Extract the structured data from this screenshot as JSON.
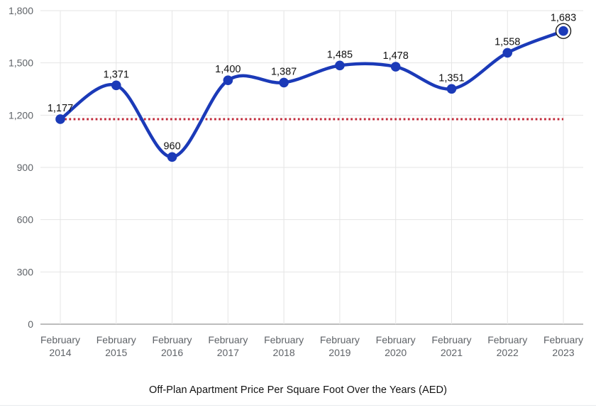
{
  "chart_data": {
    "type": "line",
    "title": "Off-Plan Apartment Price Per Square Foot Over the Years (AED)",
    "categories": [
      "February 2014",
      "February 2015",
      "February 2016",
      "February 2017",
      "February 2018",
      "February 2019",
      "February 2020",
      "February 2021",
      "February 2022",
      "February 2023"
    ],
    "values": [
      1177,
      1371,
      960,
      1400,
      1387,
      1485,
      1478,
      1351,
      1558,
      1683
    ],
    "value_labels": [
      "1,177",
      "1,371",
      "960",
      "1,400",
      "1,387",
      "1,485",
      "1,478",
      "1,351",
      "1,558",
      "1,683"
    ],
    "y_ticks": [
      0,
      300,
      600,
      900,
      1200,
      1500,
      1800
    ],
    "y_tick_labels": [
      "0",
      "300",
      "600",
      "900",
      "1,200",
      "1,500",
      "1,800"
    ],
    "ylim": [
      0,
      1800
    ],
    "grid": true,
    "legend": "none",
    "line_style": "smooth",
    "reference_line": {
      "value": 1177,
      "style": "dotted"
    },
    "highlighted_point_index": 9
  },
  "colors": {
    "line": "#1b3ab8",
    "marker": "#1b3ab8",
    "reference_line": "#c12a3a",
    "grid": "#e5e5e5",
    "axis": "#7a7a7a",
    "tick_text": "#5f6368",
    "value_text": "#111111",
    "title_text": "#121212",
    "background": "#ffffff",
    "highlight_ring": "#1a1a1a"
  }
}
